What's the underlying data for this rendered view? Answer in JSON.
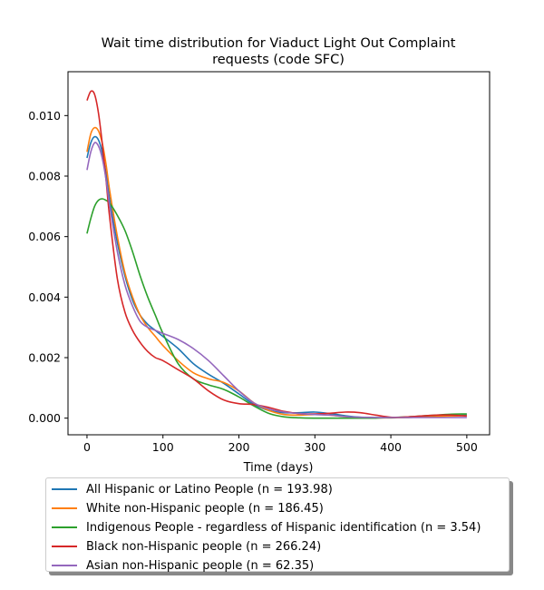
{
  "chart_data": {
    "type": "line",
    "title": "Wait time distribution  for Viaduct Light Out Complaint requests (code SFC)",
    "title_lines": [
      "Wait time distribution  for Viaduct Light Out Complaint",
      "requests (code SFC)"
    ],
    "xlabel": "Time (days)",
    "ylabel": "",
    "xlim": [
      -25,
      530
    ],
    "ylim": [
      -0.00055,
      0.01145
    ],
    "xticks": [
      0,
      100,
      200,
      300,
      400,
      500
    ],
    "xtick_labels": [
      "0",
      "100",
      "200",
      "300",
      "400",
      "500"
    ],
    "yticks": [
      0.0,
      0.002,
      0.004,
      0.006,
      0.008,
      0.01
    ],
    "ytick_labels": [
      "0.000",
      "0.002",
      "0.004",
      "0.006",
      "0.008",
      "0.010"
    ],
    "grid": false,
    "legend_position": "below",
    "series": [
      {
        "name": "All Hispanic or Latino People (n = 193.98)",
        "color": "#1f77b4",
        "points": [
          [
            0,
            0.0086
          ],
          [
            5,
            0.0091
          ],
          [
            10,
            0.0093
          ],
          [
            15,
            0.0092
          ],
          [
            20,
            0.0088
          ],
          [
            25,
            0.0081
          ],
          [
            30,
            0.0072
          ],
          [
            40,
            0.0058
          ],
          [
            50,
            0.0047
          ],
          [
            60,
            0.0039
          ],
          [
            70,
            0.0034
          ],
          [
            80,
            0.0031
          ],
          [
            90,
            0.0029
          ],
          [
            100,
            0.0027
          ],
          [
            120,
            0.0023
          ],
          [
            140,
            0.0018
          ],
          [
            160,
            0.00145
          ],
          [
            180,
            0.00115
          ],
          [
            200,
            0.0008
          ],
          [
            220,
            0.00045
          ],
          [
            240,
            0.00025
          ],
          [
            260,
            0.00018
          ],
          [
            280,
            0.00018
          ],
          [
            300,
            0.0002
          ],
          [
            320,
            0.00015
          ],
          [
            340,
            8e-05
          ],
          [
            360,
            3e-05
          ],
          [
            380,
            2e-05
          ],
          [
            400,
            1e-05
          ],
          [
            420,
            2e-05
          ],
          [
            440,
            4e-05
          ],
          [
            460,
            6e-05
          ],
          [
            480,
            8e-05
          ],
          [
            500,
            0.0001
          ]
        ]
      },
      {
        "name": "White non-Hispanic people (n = 186.45)",
        "color": "#ff7f0e",
        "points": [
          [
            0,
            0.0088
          ],
          [
            5,
            0.0094
          ],
          [
            10,
            0.0096
          ],
          [
            15,
            0.0095
          ],
          [
            20,
            0.0091
          ],
          [
            25,
            0.0084
          ],
          [
            30,
            0.0075
          ],
          [
            40,
            0.006
          ],
          [
            50,
            0.0048
          ],
          [
            60,
            0.004
          ],
          [
            70,
            0.0034
          ],
          [
            80,
            0.003
          ],
          [
            90,
            0.0027
          ],
          [
            100,
            0.0024
          ],
          [
            120,
            0.0019
          ],
          [
            140,
            0.0015
          ],
          [
            160,
            0.0013
          ],
          [
            180,
            0.00118
          ],
          [
            200,
            0.0009
          ],
          [
            220,
            0.0005
          ],
          [
            240,
            0.00025
          ],
          [
            260,
            0.00012
          ],
          [
            280,
            0.0001
          ],
          [
            300,
            0.00012
          ],
          [
            320,
            0.0001
          ],
          [
            340,
            5e-05
          ],
          [
            360,
            2e-05
          ],
          [
            380,
            1e-05
          ],
          [
            400,
            1e-05
          ],
          [
            420,
            2e-05
          ],
          [
            440,
            4e-05
          ],
          [
            460,
            6e-05
          ],
          [
            480,
            7e-05
          ],
          [
            500,
            8e-05
          ]
        ]
      },
      {
        "name": "Indigenous People - regardless of Hispanic identification (n = 3.54)",
        "color": "#2ca02c",
        "points": [
          [
            0,
            0.0061
          ],
          [
            5,
            0.0066
          ],
          [
            10,
            0.007
          ],
          [
            15,
            0.0072
          ],
          [
            20,
            0.00725
          ],
          [
            25,
            0.0072
          ],
          [
            30,
            0.0071
          ],
          [
            40,
            0.0067
          ],
          [
            50,
            0.0062
          ],
          [
            60,
            0.0055
          ],
          [
            70,
            0.0047
          ],
          [
            80,
            0.004
          ],
          [
            90,
            0.0034
          ],
          [
            100,
            0.0028
          ],
          [
            120,
            0.0018
          ],
          [
            140,
            0.0013
          ],
          [
            160,
            0.0011
          ],
          [
            180,
            0.00095
          ],
          [
            200,
            0.0007
          ],
          [
            220,
            0.0004
          ],
          [
            240,
            0.00015
          ],
          [
            260,
            4e-05
          ],
          [
            280,
            1e-05
          ],
          [
            300,
            0.0
          ],
          [
            320,
            0.0
          ],
          [
            340,
            0.0
          ],
          [
            360,
            0.0
          ],
          [
            380,
            0.0
          ],
          [
            400,
            2e-05
          ],
          [
            420,
            4e-05
          ],
          [
            440,
            7e-05
          ],
          [
            460,
            0.0001
          ],
          [
            480,
            0.00013
          ],
          [
            500,
            0.00014
          ]
        ]
      },
      {
        "name": "Black non-Hispanic people (n = 266.24)",
        "color": "#d62728",
        "points": [
          [
            0,
            0.0105
          ],
          [
            5,
            0.0108
          ],
          [
            10,
            0.0107
          ],
          [
            15,
            0.0101
          ],
          [
            20,
            0.0091
          ],
          [
            25,
            0.0079
          ],
          [
            30,
            0.0066
          ],
          [
            40,
            0.0046
          ],
          [
            50,
            0.0035
          ],
          [
            60,
            0.0029
          ],
          [
            70,
            0.0025
          ],
          [
            80,
            0.0022
          ],
          [
            90,
            0.002
          ],
          [
            100,
            0.0019
          ],
          [
            120,
            0.0016
          ],
          [
            140,
            0.0013
          ],
          [
            160,
            0.0009
          ],
          [
            180,
            0.0006
          ],
          [
            200,
            0.00048
          ],
          [
            220,
            0.00045
          ],
          [
            240,
            0.00035
          ],
          [
            260,
            0.00022
          ],
          [
            280,
            0.00015
          ],
          [
            300,
            0.00014
          ],
          [
            320,
            0.00016
          ],
          [
            340,
            0.0002
          ],
          [
            360,
            0.00018
          ],
          [
            380,
            0.0001
          ],
          [
            400,
            3e-05
          ],
          [
            420,
            4e-05
          ],
          [
            440,
            7e-05
          ],
          [
            460,
            0.0001
          ],
          [
            480,
            0.0001
          ],
          [
            500,
            7e-05
          ]
        ]
      },
      {
        "name": "Asian non-Hispanic people (n = 62.35)",
        "color": "#9467bd",
        "points": [
          [
            0,
            0.0082
          ],
          [
            5,
            0.0088
          ],
          [
            10,
            0.0091
          ],
          [
            15,
            0.009
          ],
          [
            20,
            0.0086
          ],
          [
            25,
            0.0079
          ],
          [
            30,
            0.007
          ],
          [
            40,
            0.0055
          ],
          [
            50,
            0.0044
          ],
          [
            60,
            0.0037
          ],
          [
            70,
            0.0032
          ],
          [
            80,
            0.003
          ],
          [
            90,
            0.0029
          ],
          [
            100,
            0.0028
          ],
          [
            120,
            0.0026
          ],
          [
            140,
            0.0023
          ],
          [
            160,
            0.0019
          ],
          [
            180,
            0.0014
          ],
          [
            200,
            0.0009
          ],
          [
            220,
            0.0005
          ],
          [
            240,
            0.0003
          ],
          [
            260,
            0.0002
          ],
          [
            280,
            0.00015
          ],
          [
            300,
            0.00012
          ],
          [
            320,
            0.0001
          ],
          [
            340,
            5e-05
          ],
          [
            360,
            3e-05
          ],
          [
            380,
            2e-05
          ],
          [
            400,
            2e-05
          ],
          [
            420,
            2e-05
          ],
          [
            440,
            2e-05
          ],
          [
            460,
            2e-05
          ],
          [
            480,
            2e-05
          ],
          [
            500,
            2e-05
          ]
        ]
      }
    ]
  }
}
